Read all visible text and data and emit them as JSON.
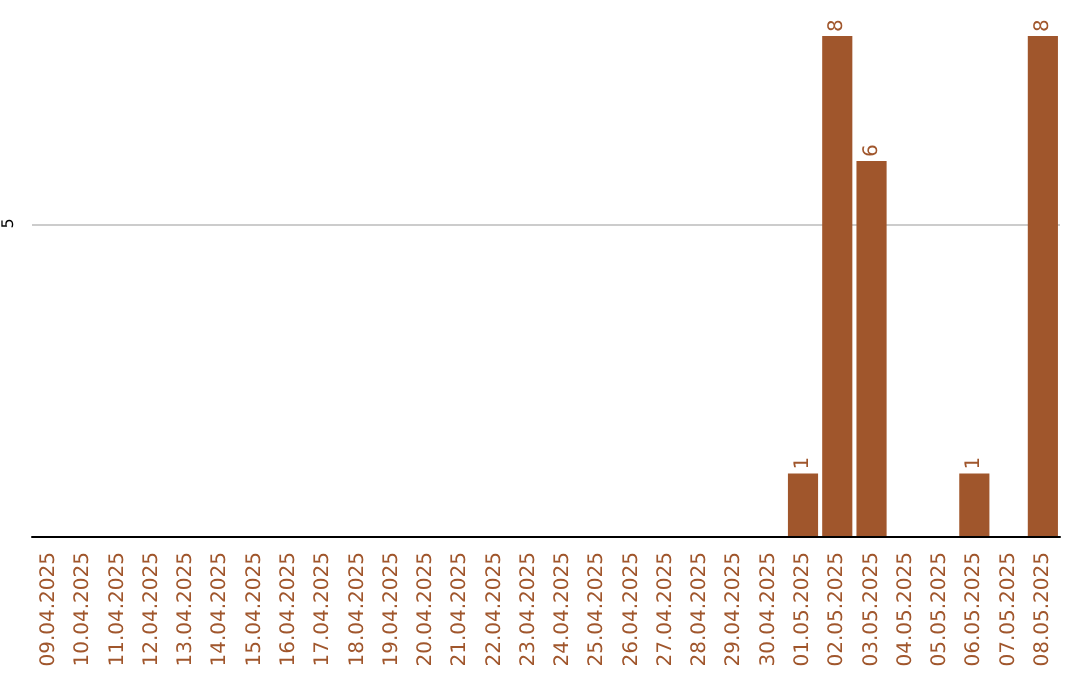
{
  "chart_data": {
    "type": "bar",
    "categories": [
      "09.04.2025",
      "10.04.2025",
      "11.04.2025",
      "12.04.2025",
      "13.04.2025",
      "14.04.2025",
      "15.04.2025",
      "16.04.2025",
      "17.04.2025",
      "18.04.2025",
      "19.04.2025",
      "20.04.2025",
      "21.04.2025",
      "22.04.2025",
      "23.04.2025",
      "24.04.2025",
      "25.04.2025",
      "26.04.2025",
      "27.04.2025",
      "28.04.2025",
      "29.04.2025",
      "30.04.2025",
      "01.05.2025",
      "02.05.2025",
      "03.05.2025",
      "04.05.2025",
      "05.05.2025",
      "06.05.2025",
      "07.05.2025",
      "08.05.2025"
    ],
    "values": [
      null,
      null,
      null,
      null,
      null,
      null,
      null,
      null,
      null,
      null,
      null,
      null,
      null,
      null,
      null,
      null,
      null,
      null,
      null,
      null,
      null,
      null,
      1,
      8,
      6,
      null,
      null,
      1,
      null,
      8
    ],
    "color": "#a0562c",
    "ylim": [
      0,
      8
    ],
    "yticks": [
      5
    ],
    "grid": "y",
    "data_labels": true
  }
}
